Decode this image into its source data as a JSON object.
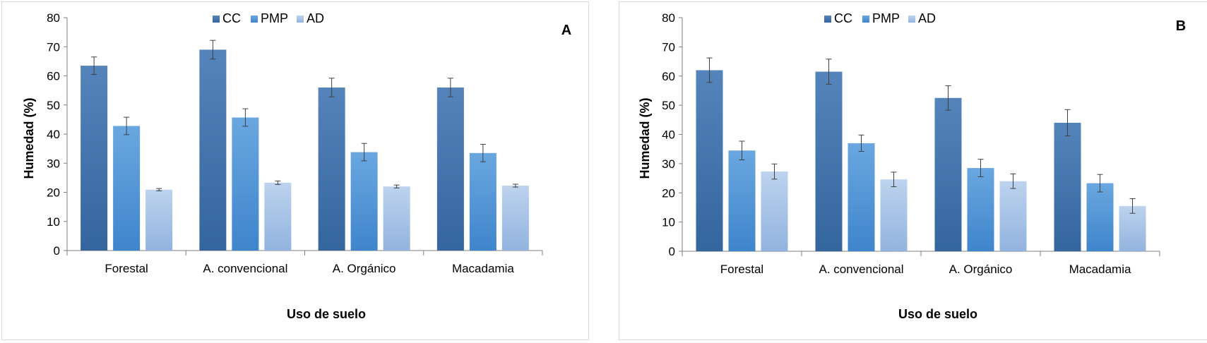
{
  "colors": {
    "CC": "#3f73ad",
    "PMP": "#4c93d6",
    "AD": "#a5c2e6",
    "axis": "#7f7f7f",
    "error_bar": "#404040"
  },
  "chart_data": [
    {
      "type": "bar",
      "panel_letter": "A",
      "categories": [
        "Forestal",
        "A. convencional",
        "A. Orgánico",
        "Macadamia"
      ],
      "series": [
        {
          "name": "CC",
          "values": [
            63.5,
            69.0,
            56.0,
            56.0
          ],
          "errors": [
            3.0,
            3.2,
            3.2,
            3.2
          ]
        },
        {
          "name": "PMP",
          "values": [
            42.8,
            45.7,
            33.8,
            33.5
          ],
          "errors": [
            3.0,
            3.0,
            3.0,
            3.0
          ]
        },
        {
          "name": "AD",
          "values": [
            20.9,
            23.3,
            22.0,
            22.3
          ],
          "errors": [
            0.4,
            0.6,
            0.5,
            0.5
          ]
        }
      ],
      "xlabel": "Uso de suelo",
      "ylabel": "Humedad (%)",
      "ylim": [
        0,
        80
      ],
      "yticks": [
        "0",
        "10",
        "20",
        "30",
        "40",
        "50",
        "60",
        "70",
        "80"
      ],
      "legend": [
        "CC",
        "PMP",
        "AD"
      ],
      "legend_position": "top-center"
    },
    {
      "type": "bar",
      "panel_letter": "B",
      "categories": [
        "Forestal",
        "A. convencional",
        "A. Orgánico",
        "Macadamia"
      ],
      "series": [
        {
          "name": "CC",
          "values": [
            62.0,
            61.5,
            52.5,
            44.0
          ],
          "errors": [
            4.2,
            4.3,
            4.2,
            4.5
          ]
        },
        {
          "name": "PMP",
          "values": [
            34.5,
            37.0,
            28.5,
            23.3
          ],
          "errors": [
            3.2,
            2.8,
            3.0,
            3.0
          ]
        },
        {
          "name": "AD",
          "values": [
            27.3,
            24.6,
            24.0,
            15.5
          ],
          "errors": [
            2.6,
            2.5,
            2.5,
            2.5
          ]
        }
      ],
      "xlabel": "Uso de suelo",
      "ylabel": "Humedad (%)",
      "ylim": [
        0,
        80
      ],
      "yticks": [
        "0",
        "10",
        "20",
        "30",
        "40",
        "50",
        "60",
        "70",
        "80"
      ],
      "legend": [
        "CC",
        "PMP",
        "AD"
      ],
      "legend_position": "top-center"
    }
  ]
}
